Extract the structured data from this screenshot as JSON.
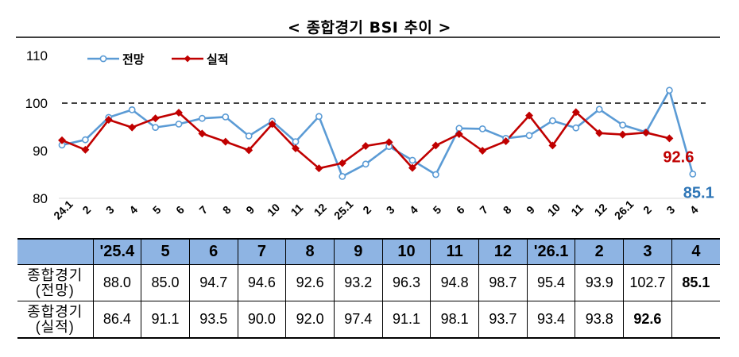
{
  "chart_data": {
    "type": "line",
    "title": "< 종합경기 BSI 추이 >",
    "x": [
      "24.1",
      "2",
      "3",
      "4",
      "5",
      "6",
      "7",
      "8",
      "9",
      "10",
      "11",
      "12",
      "25.1",
      "2",
      "3",
      "4",
      "5",
      "6",
      "7",
      "8",
      "9",
      "10",
      "11",
      "12",
      "26.1",
      "2",
      "3",
      "4"
    ],
    "ylim": [
      80,
      110
    ],
    "yticks": [
      "80",
      "90",
      "100",
      "110"
    ],
    "reference_line": 100,
    "legend_position": "top-left",
    "series": [
      {
        "name": "전망",
        "color": "#5b9bd5",
        "values": [
          91.2,
          92.3,
          97.0,
          98.6,
          94.9,
          95.6,
          96.8,
          97.1,
          93.1,
          96.2,
          91.9,
          97.2,
          84.6,
          87.2,
          90.9,
          88.0,
          85.0,
          94.7,
          94.6,
          92.6,
          93.2,
          96.3,
          94.8,
          98.7,
          95.4,
          93.9,
          102.7,
          85.1
        ]
      },
      {
        "name": "실적",
        "color": "#c00000",
        "values": [
          92.2,
          90.2,
          96.5,
          94.9,
          96.8,
          98.0,
          93.6,
          91.9,
          90.1,
          95.6,
          90.5,
          86.3,
          87.4,
          91.0,
          91.8,
          86.4,
          91.1,
          93.5,
          90.0,
          92.0,
          97.4,
          91.1,
          98.1,
          93.7,
          93.4,
          93.8,
          92.6,
          null
        ]
      }
    ],
    "annotations": [
      {
        "text": "92.6",
        "series": "실적",
        "x": "3",
        "color": "#c00000"
      },
      {
        "text": "85.1",
        "series": "전망",
        "x": "4",
        "color": "#2e75b6"
      }
    ],
    "table": {
      "columns": [
        "'25.4",
        "5",
        "6",
        "7",
        "8",
        "9",
        "10",
        "11",
        "12",
        "'26.1",
        "2",
        "3",
        "4"
      ],
      "rows": [
        {
          "label_line1": "종합경기",
          "label_line2": "(전망)",
          "values": [
            "88.0",
            "85.0",
            "94.7",
            "94.6",
            "92.6",
            "93.2",
            "96.3",
            "94.8",
            "98.7",
            "95.4",
            "93.9",
            "102.7",
            "85.1"
          ]
        },
        {
          "label_line1": "종합경기",
          "label_line2": "(실적)",
          "values": [
            "86.4",
            "91.1",
            "93.5",
            "90.0",
            "92.0",
            "97.4",
            "91.1",
            "98.1",
            "93.7",
            "93.4",
            "93.8",
            "92.6",
            ""
          ]
        }
      ]
    }
  }
}
